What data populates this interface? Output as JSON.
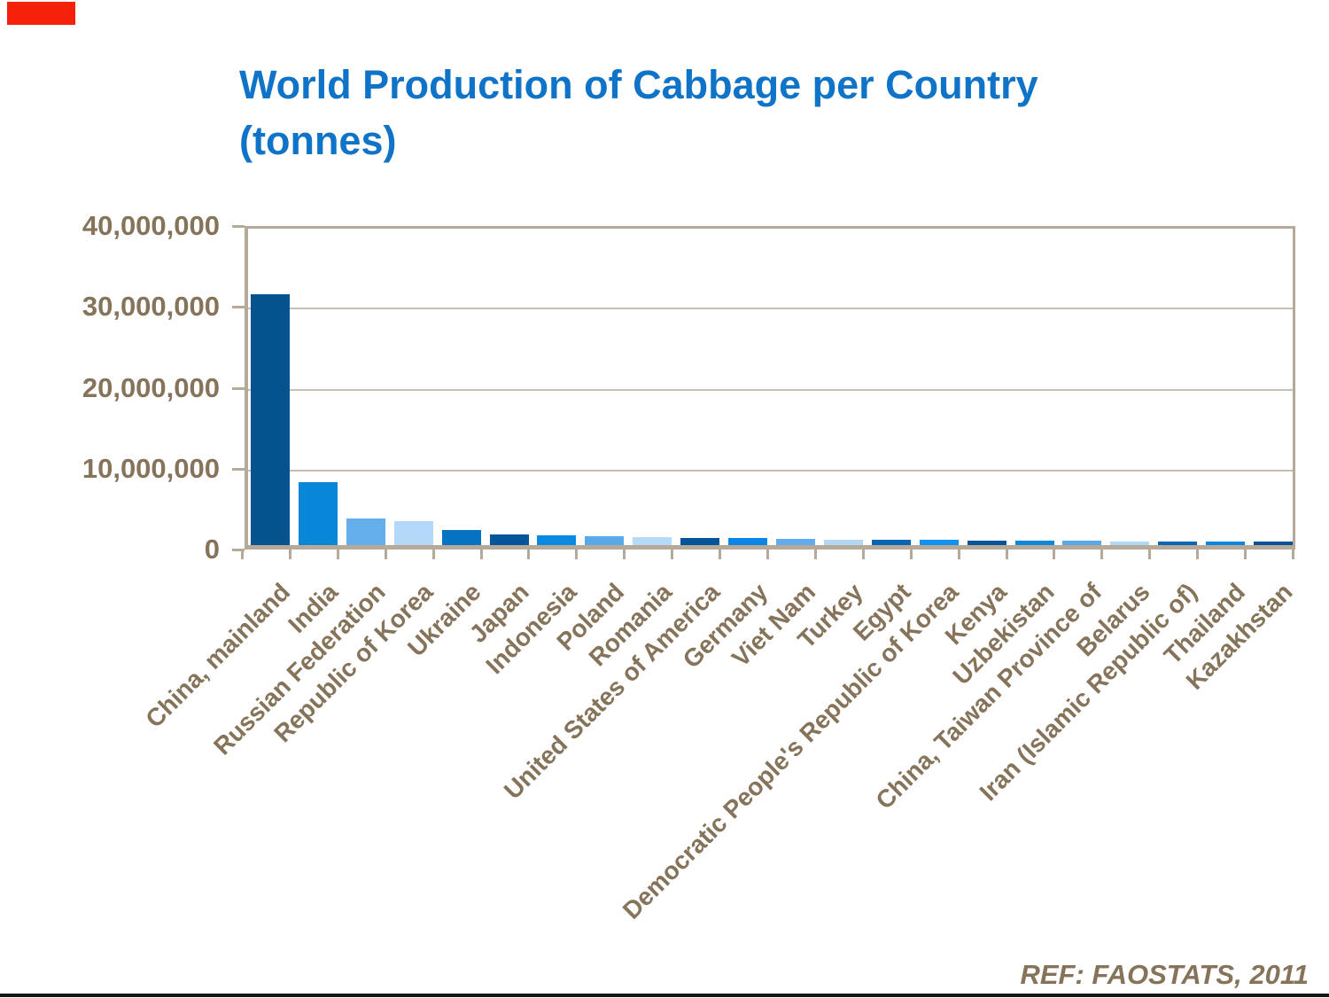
{
  "page": {
    "background": "#ffffff",
    "top_left_marker_color": "#f32208",
    "bottom_rule_color": "#161616"
  },
  "chart_data": {
    "type": "bar",
    "title": "World Production of Cabbage per Country (tonnes)",
    "title_line1": "World Production of Cabbage per Country",
    "title_line2": "(tonnes)",
    "source_note": "REF: FAOSTATS, 2011",
    "xlabel": "",
    "ylabel": "",
    "ylim": [
      0,
      40000000
    ],
    "ytick_interval": 10000000,
    "ytick_labels": [
      "40,000,000",
      "30,000,000",
      "20,000,000",
      "10,000,000",
      "0"
    ],
    "grid": "horizontal",
    "legend": "none",
    "x_label_rotation_deg": -45,
    "categories": [
      "China, mainland",
      "India",
      "Russian Federation",
      "Republic of Korea",
      "Ukraine",
      "Japan",
      "Indonesia",
      "Poland",
      "Romania",
      "United States of America",
      "Germany",
      "Viet Nam",
      "Turkey",
      "Egypt",
      "Democratic People's Republic of Korea",
      "Kenya",
      "Uzbekistan",
      "China, Taiwan Province of",
      "Belarus",
      "Iran (Islamic Republic of)",
      "Thailand",
      "Kazakhstan"
    ],
    "values": [
      31700000,
      7950000,
      3400000,
      3000000,
      1900000,
      1350000,
      1250000,
      1150000,
      1000000,
      950000,
      850000,
      750000,
      680000,
      660000,
      650000,
      600000,
      560000,
      530000,
      500000,
      480000,
      450000,
      400000
    ],
    "bar_colors": [
      "#04538E",
      "#0886D8",
      "#64AEEC",
      "#B4D8F8",
      "#0673C2",
      "#03559B",
      "#0989E2",
      "#59A9EA",
      "#B6DAF8",
      "#05549B",
      "#0A86E8",
      "#62ACEE",
      "#B4D6F2",
      "#0765B4",
      "#1090F0",
      "#07549B",
      "#0D87D8",
      "#58A8E8",
      "#B0D8F8",
      "#0767B3",
      "#0886E0",
      "#05509A"
    ],
    "colors": {
      "title": "#0f74c8",
      "axis_text": "#85735a",
      "axis_line": "#b5a999",
      "gridline": "#c9bdaf"
    }
  }
}
